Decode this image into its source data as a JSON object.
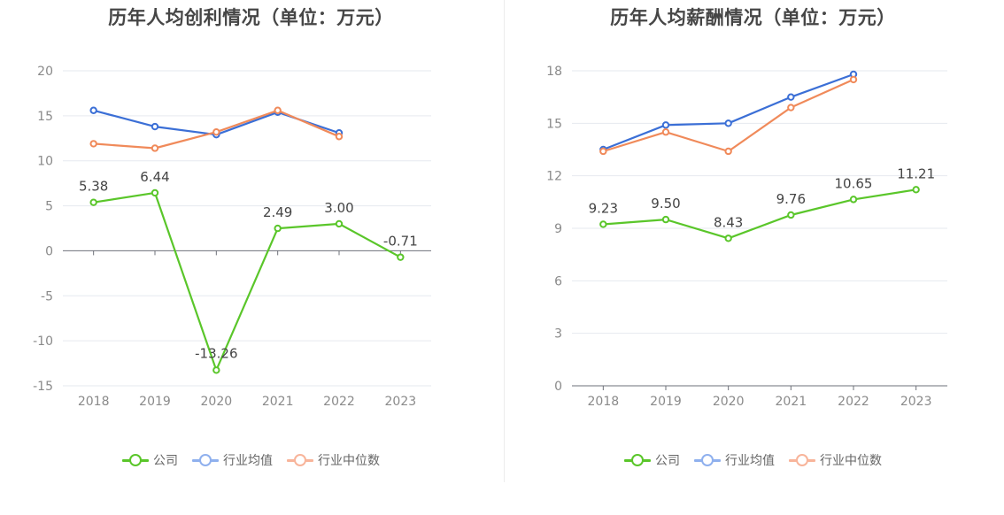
{
  "charts": [
    {
      "id": "left",
      "chart_data": {
        "type": "line",
        "title": "历年人均创利情况（单位：万元）",
        "categories": [
          "2018",
          "2019",
          "2020",
          "2021",
          "2022",
          "2023"
        ],
        "ylim": [
          -15,
          20
        ],
        "yticks": [
          -15,
          -10,
          -5,
          0,
          5,
          10,
          15,
          20
        ],
        "series": [
          {
            "name": "公司",
            "color": "#5ac62a",
            "values": [
              5.38,
              6.44,
              -13.26,
              2.49,
              3.0,
              -0.71
            ],
            "labels": [
              "5.38",
              "6.44",
              "-13.26",
              "2.49",
              "3.00",
              "-0.71"
            ]
          },
          {
            "name": "行业均值",
            "color": "#3b6fd6",
            "values": [
              15.6,
              13.8,
              12.9,
              15.4,
              13.1,
              null
            ]
          },
          {
            "name": "行业中位数",
            "color": "#f08a5a",
            "values": [
              11.9,
              11.4,
              13.2,
              15.6,
              12.7,
              null
            ]
          }
        ],
        "grid": true,
        "legend": "bottom"
      }
    },
    {
      "id": "right",
      "chart_data": {
        "type": "line",
        "title": "历年人均薪酬情况（单位：万元）",
        "categories": [
          "2018",
          "2019",
          "2020",
          "2021",
          "2022",
          "2023"
        ],
        "ylim": [
          0,
          18
        ],
        "yticks": [
          0,
          3,
          6,
          9,
          12,
          15,
          18
        ],
        "series": [
          {
            "name": "公司",
            "color": "#5ac62a",
            "values": [
              9.23,
              9.5,
              8.43,
              9.76,
              10.65,
              11.21
            ],
            "labels": [
              "9.23",
              "9.50",
              "8.43",
              "9.76",
              "10.65",
              "11.21"
            ]
          },
          {
            "name": "行业均值",
            "color": "#3b6fd6",
            "values": [
              13.5,
              14.9,
              15.0,
              16.5,
              17.8,
              null
            ]
          },
          {
            "name": "行业中位数",
            "color": "#f08a5a",
            "values": [
              13.4,
              14.5,
              13.4,
              15.9,
              17.5,
              null
            ]
          }
        ],
        "grid": true,
        "legend": "bottom"
      }
    }
  ],
  "legend_colors": {
    "公司": "#5ac62a",
    "行业均值": "#8fb0ee",
    "行业中位数": "#f8b49a"
  }
}
